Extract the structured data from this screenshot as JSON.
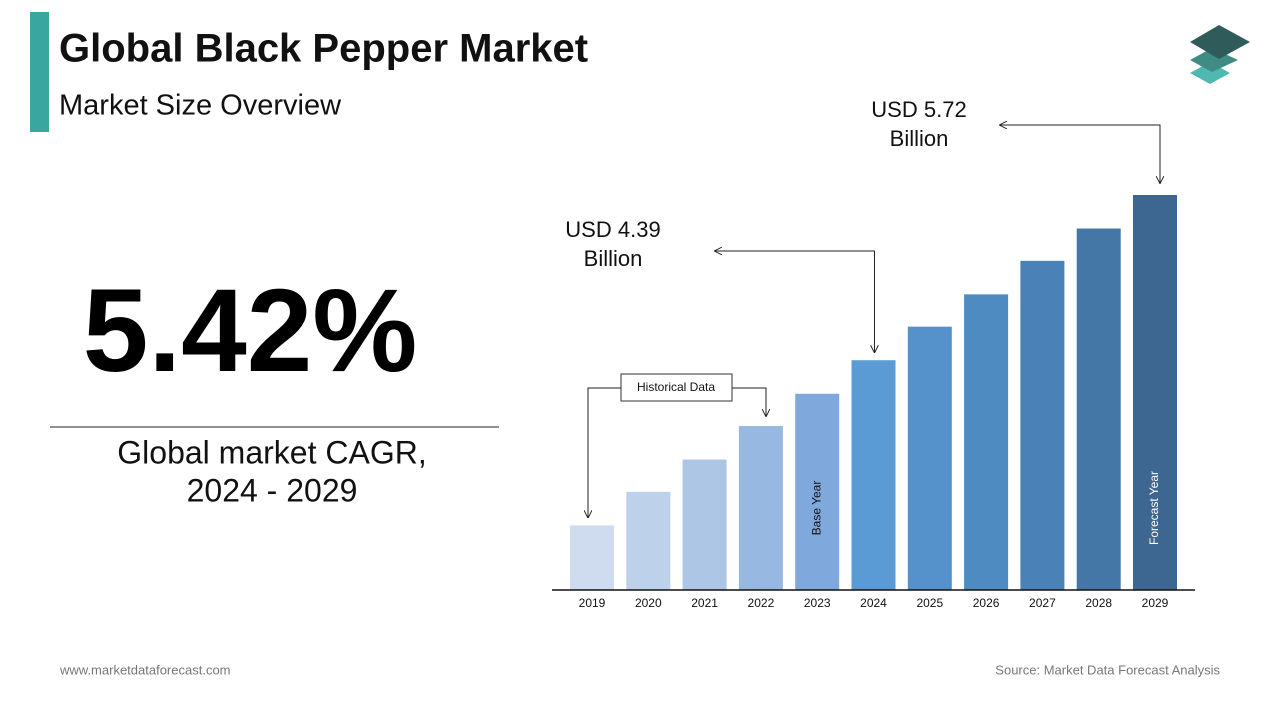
{
  "header": {
    "title": "Global Black Pepper Market",
    "subtitle": "Market Size Overview"
  },
  "highlight": {
    "value": "5.42%",
    "caption": [
      "Global market CAGR,",
      "2024 - 2029"
    ]
  },
  "chart_data": {
    "type": "bar",
    "categories": [
      "2019",
      "2020",
      "2021",
      "2022",
      "2023",
      "2024",
      "2025",
      "2026",
      "2027",
      "2028",
      "2029"
    ],
    "values": [
      3.06,
      3.33,
      3.59,
      3.86,
      4.12,
      4.39,
      4.66,
      4.92,
      5.19,
      5.45,
      5.72
    ],
    "colors": [
      "#cfdcef",
      "#bed1ea",
      "#adc6e6",
      "#97b8e0",
      "#7fa9dc",
      "#5b9bd5",
      "#5592cc",
      "#4e8bc0",
      "#4a82b8",
      "#4476a6",
      "#3d6690"
    ],
    "ylim": [
      2.54,
      5.72
    ],
    "annotations": {
      "start_value": [
        "USD 4.39",
        "Billion"
      ],
      "end_value": [
        "USD 5.72",
        "Billion"
      ],
      "historical": "Historical Data",
      "base_year": "Base Year",
      "forecast_year": "Forecast Year"
    }
  },
  "footer": {
    "website": "www.marketdataforecast.com",
    "source": "Source: Market Data Forecast Analysis"
  }
}
